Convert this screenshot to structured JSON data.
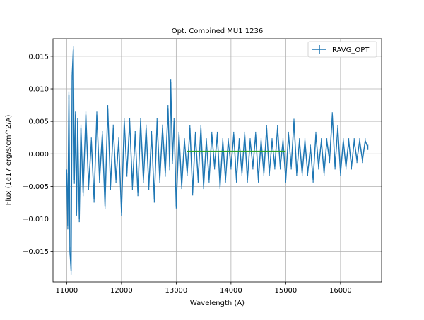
{
  "chart_data": {
    "type": "line",
    "title": "Opt. Combined MU1 1236",
    "xlabel": "Wavelength (A)",
    "ylabel": "Flux (1e17 erg/s/cm^2/A)",
    "xlim": [
      10750,
      16750
    ],
    "ylim": [
      -0.0197,
      0.0177
    ],
    "grid": true,
    "legend_position": "top-right",
    "x_ticks": [
      11000,
      12000,
      13000,
      14000,
      15000,
      16000
    ],
    "x_tick_labels": [
      "11000",
      "12000",
      "13000",
      "14000",
      "15000",
      "16000"
    ],
    "y_ticks": [
      -0.015,
      -0.01,
      -0.005,
      0.0,
      0.005,
      0.01,
      0.015
    ],
    "y_tick_labels": [
      "−0.015",
      "−0.010",
      "−0.005",
      "0.000",
      "0.005",
      "0.010",
      "0.015"
    ],
    "series": [
      {
        "name": "RAVG_OPT",
        "color": "#1f77b4",
        "style": "line-with-errorbars",
        "x": [
          11000,
          11020,
          11040,
          11060,
          11080,
          11100,
          11120,
          11140,
          11160,
          11180,
          11200,
          11230,
          11260,
          11300,
          11350,
          11400,
          11450,
          11500,
          11550,
          11600,
          11650,
          11700,
          11750,
          11800,
          11850,
          11900,
          11950,
          12000,
          12050,
          12100,
          12150,
          12200,
          12250,
          12300,
          12350,
          12400,
          12450,
          12500,
          12550,
          12600,
          12650,
          12700,
          12750,
          12800,
          12850,
          12880,
          12900,
          12930,
          12960,
          13000,
          13050,
          13100,
          13150,
          13200,
          13250,
          13300,
          13350,
          13400,
          13450,
          13500,
          13550,
          13600,
          13650,
          13700,
          13750,
          13800,
          13850,
          13900,
          13950,
          14000,
          14050,
          14100,
          14150,
          14200,
          14250,
          14300,
          14350,
          14400,
          14450,
          14500,
          14550,
          14600,
          14650,
          14700,
          14750,
          14800,
          14850,
          14900,
          14950,
          15000,
          15050,
          15100,
          15150,
          15200,
          15250,
          15300,
          15350,
          15400,
          15450,
          15500,
          15550,
          15600,
          15650,
          15700,
          15750,
          15800,
          15850,
          15900,
          15950,
          16000,
          16050,
          16100,
          16150,
          16200,
          16250,
          16300,
          16350,
          16400,
          16450,
          16500
        ],
        "y": [
          -0.003,
          -0.011,
          0.009,
          -0.015,
          -0.018,
          0.012,
          0.016,
          -0.004,
          0.006,
          -0.009,
          0.005,
          -0.01,
          0.004,
          -0.006,
          0.006,
          -0.005,
          0.002,
          -0.007,
          0.006,
          -0.004,
          0.003,
          -0.008,
          0.007,
          -0.005,
          0.004,
          -0.004,
          0.002,
          -0.009,
          0.005,
          -0.003,
          0.005,
          -0.005,
          0.003,
          -0.006,
          0.005,
          -0.004,
          0.004,
          -0.005,
          0.003,
          -0.007,
          0.005,
          -0.004,
          0.004,
          -0.003,
          0.007,
          -0.002,
          0.011,
          -0.001,
          0.005,
          -0.008,
          0.003,
          -0.005,
          0.002,
          -0.003,
          0.004,
          -0.006,
          0.003,
          -0.004,
          0.004,
          -0.005,
          0.002,
          -0.004,
          0.003,
          -0.002,
          0.003,
          -0.005,
          0.002,
          -0.004,
          0.002,
          -0.002,
          0.003,
          -0.004,
          0.002,
          -0.003,
          0.003,
          -0.004,
          0.002,
          -0.002,
          0.003,
          -0.004,
          0.002,
          -0.003,
          0.004,
          -0.003,
          0.002,
          -0.002,
          0.004,
          -0.002,
          0.002,
          -0.004,
          0.003,
          -0.002,
          0.005,
          -0.003,
          0.002,
          -0.003,
          0.002,
          -0.003,
          0.001,
          -0.004,
          0.003,
          -0.002,
          0.002,
          -0.003,
          0.002,
          -0.001,
          0.006,
          -0.002,
          0.004,
          -0.003,
          0.002,
          -0.002,
          0.002,
          -0.002,
          0.002,
          -0.001,
          0.002,
          -0.001,
          0.002,
          0.001
        ],
        "yerr": [
          0.0006,
          0.0006,
          0.0006,
          0.0006,
          0.0006,
          0.0006,
          0.0006,
          0.0006,
          0.0005,
          0.0005,
          0.0005,
          0.0005,
          0.0005,
          0.0005,
          0.0005,
          0.0005,
          0.0005,
          0.0005,
          0.0005,
          0.0005,
          0.0005,
          0.0005,
          0.0005,
          0.0005,
          0.0005,
          0.0005,
          0.0005,
          0.0005,
          0.0005,
          0.0005,
          0.0005,
          0.0005,
          0.0005,
          0.0005,
          0.0005,
          0.0005,
          0.0005,
          0.0005,
          0.0005,
          0.0005,
          0.0005,
          0.0005,
          0.0005,
          0.0005,
          0.0005,
          0.0005,
          0.0005,
          0.0005,
          0.0005,
          0.0004,
          0.0004,
          0.0004,
          0.0004,
          0.0004,
          0.0004,
          0.0004,
          0.0004,
          0.0004,
          0.0004,
          0.0004,
          0.0004,
          0.0004,
          0.0004,
          0.0004,
          0.0004,
          0.0004,
          0.0004,
          0.0004,
          0.0004,
          0.0004,
          0.0004,
          0.0004,
          0.0004,
          0.0004,
          0.0004,
          0.0004,
          0.0004,
          0.0004,
          0.0004,
          0.0004,
          0.0004,
          0.0004,
          0.0004,
          0.0004,
          0.0004,
          0.0004,
          0.0004,
          0.0004,
          0.0004,
          0.0004,
          0.0004,
          0.0004,
          0.0004,
          0.0004,
          0.0004,
          0.0004,
          0.0004,
          0.0004,
          0.0004,
          0.0004,
          0.0004,
          0.0004,
          0.0004,
          0.0004,
          0.0004,
          0.0004,
          0.0004,
          0.0004,
          0.0004,
          0.0004,
          0.0004,
          0.0004,
          0.0004,
          0.0004,
          0.0004,
          0.0004,
          0.0004,
          0.0004,
          0.0004,
          0.0004
        ]
      },
      {
        "color": "#2ca02c",
        "style": "line",
        "x": [
          13200,
          15000
        ],
        "y": [
          0.0004,
          0.0004
        ]
      }
    ]
  }
}
